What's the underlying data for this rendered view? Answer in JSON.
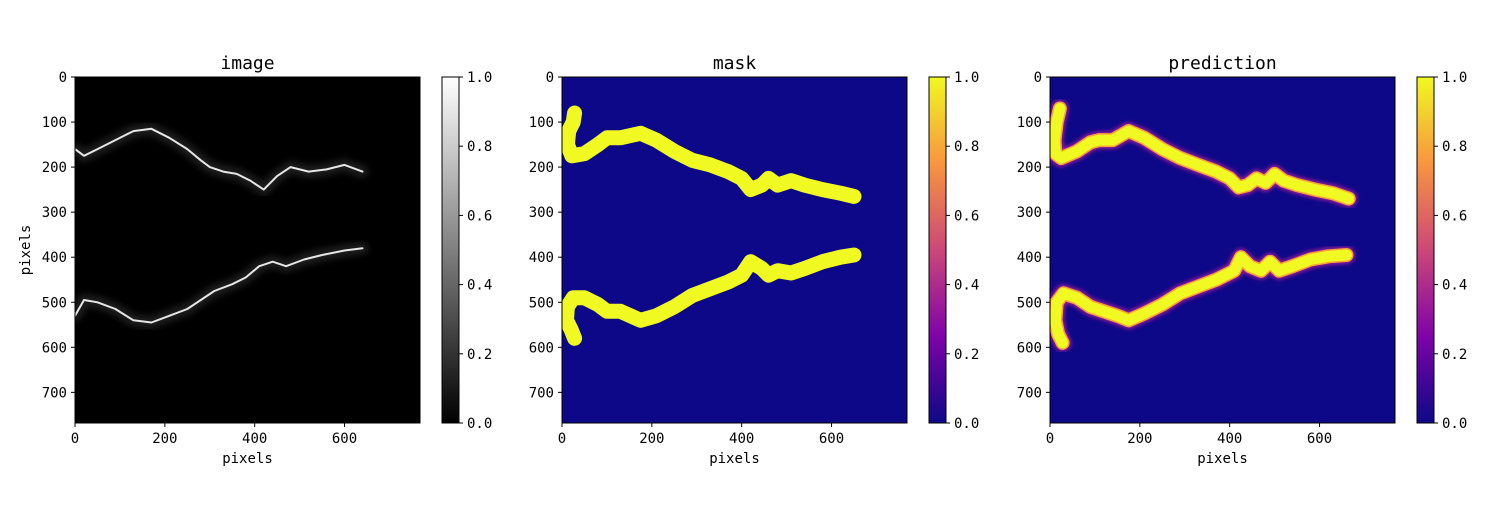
{
  "figure": {
    "panels": [
      {
        "id": "image",
        "title": "image",
        "xlabel": "pixels",
        "ylabel": "pixels",
        "colormap": "gray"
      },
      {
        "id": "mask",
        "title": "mask",
        "xlabel": "pixels",
        "ylabel": "",
        "colormap": "plasma"
      },
      {
        "id": "prediction",
        "title": "prediction",
        "xlabel": "pixels",
        "ylabel": "",
        "colormap": "plasma"
      }
    ],
    "colormaps": {
      "gray": [
        "#000000",
        "#ffffff"
      ],
      "plasma": [
        "#0d0887",
        "#7e03a8",
        "#cc4778",
        "#f89540",
        "#f0f921"
      ]
    }
  },
  "chart_data": [
    {
      "type": "heatmap",
      "title": "image",
      "xlabel": "pixels",
      "ylabel": "pixels",
      "xlim": [
        0,
        768
      ],
      "ylim": [
        768,
        0
      ],
      "xticks": [
        0,
        200,
        400,
        600
      ],
      "yticks": [
        0,
        100,
        200,
        300,
        400,
        500,
        600,
        700
      ],
      "colorbar": {
        "range": [
          0.0,
          1.0
        ],
        "ticks": [
          "0.0",
          "0.2",
          "0.4",
          "0.6",
          "0.8",
          "1.0"
        ],
        "colormap": "gray"
      },
      "background_value": 0.0,
      "features": [
        {
          "name": "upper-edge",
          "value": 0.9,
          "points": [
            [
              0,
              160
            ],
            [
              20,
              175
            ],
            [
              50,
              160
            ],
            [
              90,
              140
            ],
            [
              130,
              120
            ],
            [
              170,
              115
            ],
            [
              210,
              135
            ],
            [
              250,
              160
            ],
            [
              280,
              185
            ],
            [
              300,
              200
            ],
            [
              330,
              210
            ],
            [
              360,
              215
            ],
            [
              390,
              230
            ],
            [
              420,
              250
            ],
            [
              450,
              220
            ],
            [
              480,
              200
            ],
            [
              520,
              210
            ],
            [
              560,
              205
            ],
            [
              600,
              195
            ],
            [
              640,
              210
            ]
          ]
        },
        {
          "name": "lower-edge",
          "value": 0.9,
          "points": [
            [
              0,
              530
            ],
            [
              20,
              495
            ],
            [
              50,
              500
            ],
            [
              90,
              515
            ],
            [
              130,
              540
            ],
            [
              170,
              545
            ],
            [
              210,
              530
            ],
            [
              250,
              515
            ],
            [
              280,
              495
            ],
            [
              310,
              475
            ],
            [
              350,
              460
            ],
            [
              380,
              445
            ],
            [
              410,
              420
            ],
            [
              440,
              410
            ],
            [
              470,
              420
            ],
            [
              510,
              405
            ],
            [
              550,
              395
            ],
            [
              600,
              385
            ],
            [
              640,
              380
            ]
          ]
        }
      ]
    },
    {
      "type": "heatmap",
      "title": "mask",
      "xlabel": "pixels",
      "ylabel": "",
      "xlim": [
        0,
        768
      ],
      "ylim": [
        768,
        0
      ],
      "xticks": [
        0,
        200,
        400,
        600
      ],
      "yticks": [
        0,
        100,
        200,
        300,
        400,
        500,
        600,
        700
      ],
      "colorbar": {
        "range": [
          0.0,
          1.0
        ],
        "ticks": [
          "0.0",
          "0.2",
          "0.4",
          "0.6",
          "0.8",
          "1.0"
        ],
        "colormap": "plasma"
      },
      "background_value": 0.0,
      "features": [
        {
          "name": "upper-band",
          "value": 1.0,
          "points": [
            [
              28,
              80
            ],
            [
              25,
              100
            ],
            [
              15,
              120
            ],
            [
              12,
              150
            ],
            [
              22,
              175
            ],
            [
              50,
              170
            ],
            [
              80,
              150
            ],
            [
              100,
              135
            ],
            [
              130,
              135
            ],
            [
              175,
              125
            ],
            [
              210,
              140
            ],
            [
              250,
              165
            ],
            [
              290,
              185
            ],
            [
              330,
              195
            ],
            [
              370,
              210
            ],
            [
              400,
              225
            ],
            [
              420,
              250
            ],
            [
              445,
              240
            ],
            [
              460,
              225
            ],
            [
              480,
              240
            ],
            [
              510,
              230
            ],
            [
              540,
              240
            ],
            [
              580,
              250
            ],
            [
              620,
              258
            ],
            [
              650,
              265
            ]
          ]
        },
        {
          "name": "lower-band",
          "value": 1.0,
          "points": [
            [
              28,
              580
            ],
            [
              20,
              560
            ],
            [
              10,
              540
            ],
            [
              12,
              510
            ],
            [
              25,
              490
            ],
            [
              50,
              490
            ],
            [
              80,
              505
            ],
            [
              100,
              520
            ],
            [
              130,
              520
            ],
            [
              175,
              540
            ],
            [
              210,
              530
            ],
            [
              250,
              510
            ],
            [
              290,
              485
            ],
            [
              330,
              470
            ],
            [
              370,
              455
            ],
            [
              400,
              440
            ],
            [
              420,
              410
            ],
            [
              445,
              425
            ],
            [
              460,
              440
            ],
            [
              480,
              430
            ],
            [
              510,
              435
            ],
            [
              540,
              425
            ],
            [
              580,
              410
            ],
            [
              620,
              400
            ],
            [
              650,
              395
            ]
          ]
        }
      ]
    },
    {
      "type": "heatmap",
      "title": "prediction",
      "xlabel": "pixels",
      "ylabel": "",
      "xlim": [
        0,
        768
      ],
      "ylim": [
        768,
        0
      ],
      "xticks": [
        0,
        200,
        400,
        600
      ],
      "yticks": [
        0,
        100,
        200,
        300,
        400,
        500,
        600,
        700
      ],
      "colorbar": {
        "range": [
          0.0,
          1.0
        ],
        "ticks": [
          "0.0",
          "0.2",
          "0.4",
          "0.6",
          "0.8",
          "1.0"
        ],
        "colormap": "plasma"
      },
      "background_value": 0.0,
      "features": [
        {
          "name": "upper-band",
          "value": 1.0,
          "points": [
            [
              22,
              70
            ],
            [
              15,
              100
            ],
            [
              10,
              140
            ],
            [
              12,
              170
            ],
            [
              25,
              180
            ],
            [
              60,
              165
            ],
            [
              90,
              145
            ],
            [
              110,
              140
            ],
            [
              140,
              140
            ],
            [
              175,
              120
            ],
            [
              210,
              135
            ],
            [
              250,
              160
            ],
            [
              290,
              180
            ],
            [
              330,
              195
            ],
            [
              370,
              210
            ],
            [
              400,
              225
            ],
            [
              420,
              245
            ],
            [
              440,
              240
            ],
            [
              460,
              225
            ],
            [
              480,
              235
            ],
            [
              500,
              215
            ],
            [
              520,
              230
            ],
            [
              550,
              240
            ],
            [
              590,
              250
            ],
            [
              630,
              258
            ],
            [
              665,
              270
            ]
          ]
        },
        {
          "name": "lower-band",
          "value": 1.0,
          "points": [
            [
              28,
              590
            ],
            [
              18,
              570
            ],
            [
              12,
              540
            ],
            [
              15,
              500
            ],
            [
              30,
              480
            ],
            [
              60,
              490
            ],
            [
              90,
              510
            ],
            [
              120,
              520
            ],
            [
              150,
              530
            ],
            [
              175,
              540
            ],
            [
              210,
              525
            ],
            [
              250,
              505
            ],
            [
              290,
              480
            ],
            [
              330,
              465
            ],
            [
              370,
              450
            ],
            [
              410,
              430
            ],
            [
              425,
              400
            ],
            [
              445,
              420
            ],
            [
              470,
              430
            ],
            [
              490,
              410
            ],
            [
              510,
              430
            ],
            [
              540,
              420
            ],
            [
              580,
              405
            ],
            [
              620,
              398
            ],
            [
              660,
              395
            ]
          ]
        }
      ]
    }
  ]
}
